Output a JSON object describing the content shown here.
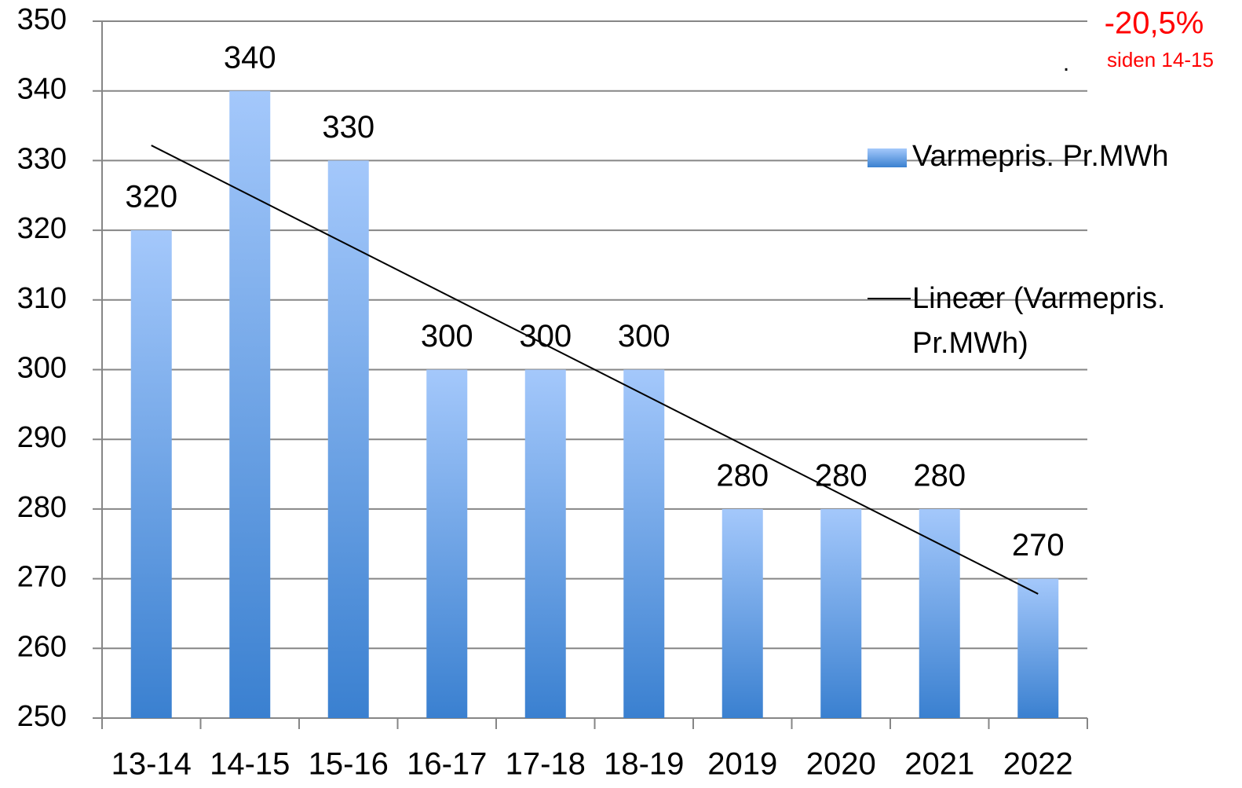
{
  "chart_data": {
    "type": "bar",
    "categories": [
      "13-14",
      "14-15",
      "15-16",
      "16-17",
      "17-18",
      "18-19",
      "2019",
      "2020",
      "2021",
      "2022"
    ],
    "series": [
      {
        "name": "Varmepris. Pr.MWh",
        "color": "#3a80d0",
        "values": [
          320,
          340,
          330,
          300,
          300,
          300,
          280,
          280,
          280,
          270
        ]
      }
    ],
    "trendline": {
      "type": "linear",
      "name": "Lineær (Varmepris. Pr.MWh)",
      "color": "#000000"
    },
    "ylim": [
      250,
      350
    ],
    "yticks": [
      250,
      260,
      270,
      280,
      290,
      300,
      310,
      320,
      330,
      340,
      350
    ],
    "grid": true,
    "legend": "right",
    "annotations": [
      {
        "text": "-20,5%",
        "color": "#ff0000"
      },
      {
        "text": "siden 14-15",
        "color": "#ff0000"
      },
      {
        "text": "."
      }
    ]
  }
}
